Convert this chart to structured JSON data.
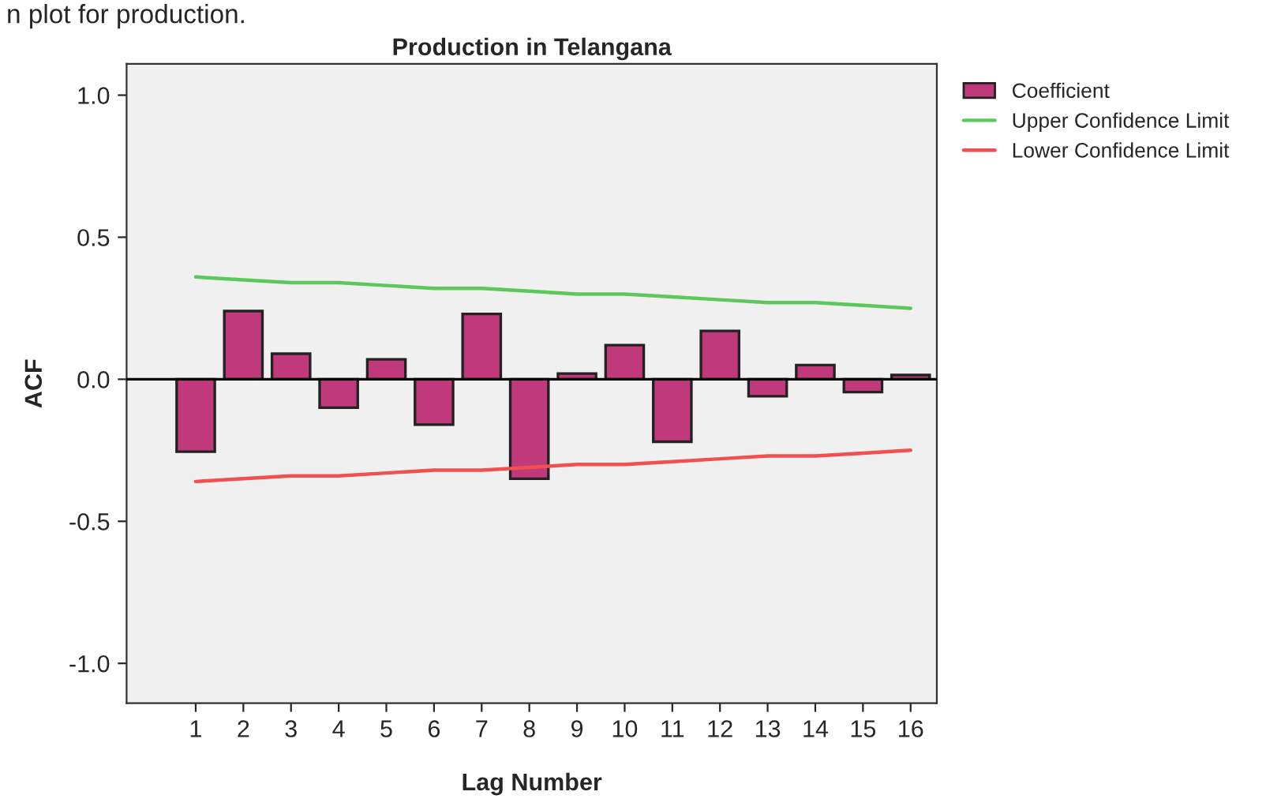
{
  "chart_data": {
    "type": "bar",
    "title": "Production in Telangana",
    "xlabel": "Lag Number",
    "ylabel": "ACF",
    "annotations": [
      "n plot for production."
    ],
    "categories": [
      "1",
      "2",
      "3",
      "4",
      "5",
      "6",
      "7",
      "8",
      "9",
      "10",
      "11",
      "12",
      "13",
      "14",
      "15",
      "16"
    ],
    "series": [
      {
        "name": "Coefficient",
        "color": "#c0397a",
        "values": [
          -0.255,
          0.24,
          0.09,
          -0.1,
          0.07,
          -0.16,
          0.23,
          -0.35,
          0.02,
          0.12,
          -0.22,
          0.17,
          -0.06,
          0.05,
          -0.045,
          0.015
        ]
      },
      {
        "name": "Upper Confidence Limit",
        "type": "line",
        "color": "#5cc85c",
        "values": [
          0.36,
          0.35,
          0.34,
          0.34,
          0.33,
          0.32,
          0.32,
          0.31,
          0.3,
          0.3,
          0.29,
          0.28,
          0.27,
          0.27,
          0.26,
          0.25
        ]
      },
      {
        "name": "Lower Confidence Limit",
        "type": "line",
        "color": "#f05050",
        "values": [
          -0.36,
          -0.35,
          -0.34,
          -0.34,
          -0.33,
          -0.32,
          -0.32,
          -0.31,
          -0.3,
          -0.3,
          -0.29,
          -0.28,
          -0.27,
          -0.27,
          -0.26,
          -0.25
        ]
      }
    ],
    "ylim": [
      -1.14,
      1.11
    ],
    "yticks": [
      {
        "value": 1,
        "label": "1.0"
      },
      {
        "value": 0.5,
        "label": "0.5"
      },
      {
        "value": 0,
        "label": "0.0"
      },
      {
        "value": -0.5,
        "label": "-0.5"
      },
      {
        "value": -1,
        "label": "-1.0"
      }
    ],
    "ref_lines": [
      {
        "axis": "y",
        "value": 0,
        "color": "#000000"
      }
    ],
    "grid": false,
    "legend": "top right"
  }
}
